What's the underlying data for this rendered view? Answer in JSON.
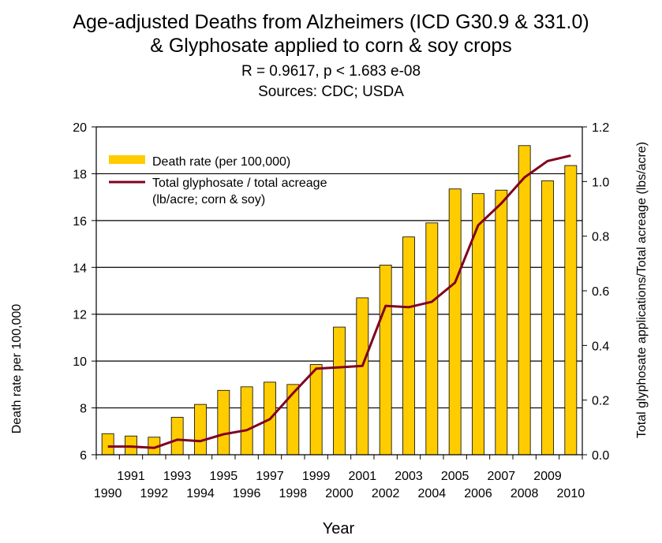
{
  "chart_data": {
    "type": "bar",
    "title": "Age-adjusted Deaths from Alzheimers (ICD G30.9 & 331.0)",
    "title_line2": "& Glyphosate applied to corn & soy crops",
    "subtitle": "R = 0.9617, p < 1.683 e-08",
    "sources": "Sources: CDC; USDA",
    "xlabel": "Year",
    "ylabel": "Death rate  per 100,000",
    "y2label": "Total glyphosate applications/Total acreage (lbs/acre)",
    "categories": [
      "1990",
      "1991",
      "1992",
      "1993",
      "1994",
      "1995",
      "1996",
      "1997",
      "1998",
      "1999",
      "2000",
      "2001",
      "2002",
      "2003",
      "2004",
      "2005",
      "2006",
      "2007",
      "2008",
      "2009",
      "2010"
    ],
    "ylim": [
      6,
      20
    ],
    "yticks": [
      "6",
      "8",
      "10",
      "12",
      "14",
      "16",
      "18",
      "20"
    ],
    "y2lim": [
      0,
      1.2
    ],
    "y2ticks": [
      "0.0",
      "0.2",
      "0.4",
      "0.6",
      "0.8",
      "1.0",
      "1.2"
    ],
    "grid": "horizontal",
    "legend_position": "top-left",
    "series": [
      {
        "name": "Death rate (per 100,000)",
        "type": "bar",
        "axis": "left",
        "color": "#FFCC00",
        "values": [
          6.9,
          6.8,
          6.75,
          7.6,
          8.15,
          8.75,
          8.9,
          9.1,
          9.0,
          9.85,
          11.45,
          12.7,
          14.1,
          15.3,
          15.9,
          17.35,
          17.15,
          17.3,
          19.2,
          17.7,
          18.35
        ]
      },
      {
        "name": "Total glyphosate / total acreage",
        "name_line2": "(lb/acre; corn & soy)",
        "type": "line",
        "axis": "right",
        "color": "#800020",
        "values": [
          0.03,
          0.03,
          0.025,
          0.055,
          0.05,
          0.075,
          0.09,
          0.13,
          0.225,
          0.315,
          0.32,
          0.325,
          0.545,
          0.54,
          0.56,
          0.63,
          0.84,
          0.92,
          1.015,
          1.075,
          1.095
        ]
      }
    ]
  }
}
